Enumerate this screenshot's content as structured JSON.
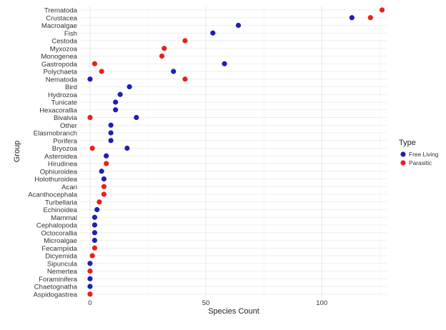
{
  "chart_data": {
    "type": "scatter",
    "orientation": "horizontal",
    "title": "",
    "xlabel": "Species Count",
    "ylabel": "Group",
    "xlim": [
      -4,
      128
    ],
    "xticks": [
      0,
      50,
      100
    ],
    "grid": true,
    "legend": {
      "title": "Type",
      "position": "right"
    },
    "categories": [
      "Trematoda",
      "Crustacea",
      "Macroalgae",
      "Fish",
      "Cestoda",
      "Myxozoa",
      "Monogenea",
      "Gastropoda",
      "Polychaeta",
      "Nematoda",
      "Bird",
      "Hydrozoa",
      "Tunicate",
      "Hexacorallia",
      "Bivalvia",
      "Other",
      "Elasmobranch",
      "Porifera",
      "Bryozoa",
      "Asteroidea",
      "Hirudinea",
      "Ophiuroidea",
      "Holothuroidea",
      "Acari",
      "Acanthocephala",
      "Turbellaria",
      "Echinoidea",
      "Mammal",
      "Cephalopoda",
      "Octocorallia",
      "Microalgae",
      "Fecampiida",
      "Dicyemida",
      "Sipuncula",
      "Nemertea",
      "Foraminifera",
      "Chaetognatha",
      "Aspidogastrea"
    ],
    "series": [
      {
        "name": "Free Living",
        "color": "#1f1fb4",
        "points": [
          {
            "group": "Crustacea",
            "value": 113
          },
          {
            "group": "Macroalgae",
            "value": 64
          },
          {
            "group": "Fish",
            "value": 53
          },
          {
            "group": "Gastropoda",
            "value": 58
          },
          {
            "group": "Polychaeta",
            "value": 36
          },
          {
            "group": "Nematoda",
            "value": 0
          },
          {
            "group": "Bird",
            "value": 17
          },
          {
            "group": "Hydrozoa",
            "value": 13
          },
          {
            "group": "Tunicate",
            "value": 11
          },
          {
            "group": "Hexacorallia",
            "value": 11
          },
          {
            "group": "Bivalvia",
            "value": 20
          },
          {
            "group": "Other",
            "value": 9
          },
          {
            "group": "Elasmobranch",
            "value": 9
          },
          {
            "group": "Porifera",
            "value": 9
          },
          {
            "group": "Bryozoa",
            "value": 16
          },
          {
            "group": "Asteroidea",
            "value": 7
          },
          {
            "group": "Ophiuroidea",
            "value": 5
          },
          {
            "group": "Holothuroidea",
            "value": 6
          },
          {
            "group": "Echinoidea",
            "value": 3
          },
          {
            "group": "Mammal",
            "value": 2
          },
          {
            "group": "Cephalopoda",
            "value": 2
          },
          {
            "group": "Octocorallia",
            "value": 2
          },
          {
            "group": "Microalgae",
            "value": 2
          },
          {
            "group": "Sipuncula",
            "value": 0
          },
          {
            "group": "Foraminifera",
            "value": 0
          },
          {
            "group": "Chaetognatha",
            "value": 0
          }
        ]
      },
      {
        "name": "Parasitic",
        "color": "#e8201c",
        "points": [
          {
            "group": "Trematoda",
            "value": 126
          },
          {
            "group": "Crustacea",
            "value": 121
          },
          {
            "group": "Cestoda",
            "value": 41
          },
          {
            "group": "Myxozoa",
            "value": 32
          },
          {
            "group": "Monogenea",
            "value": 31
          },
          {
            "group": "Gastropoda",
            "value": 2
          },
          {
            "group": "Polychaeta",
            "value": 5
          },
          {
            "group": "Nematoda",
            "value": 41
          },
          {
            "group": "Bivalvia",
            "value": 0
          },
          {
            "group": "Bryozoa",
            "value": 1
          },
          {
            "group": "Hirudinea",
            "value": 7
          },
          {
            "group": "Acari",
            "value": 6
          },
          {
            "group": "Acanthocephala",
            "value": 6
          },
          {
            "group": "Turbellaria",
            "value": 4
          },
          {
            "group": "Fecampiida",
            "value": 2
          },
          {
            "group": "Dicyemida",
            "value": 1
          },
          {
            "group": "Nemertea",
            "value": 0
          },
          {
            "group": "Aspidogastrea",
            "value": 0
          }
        ]
      }
    ]
  }
}
